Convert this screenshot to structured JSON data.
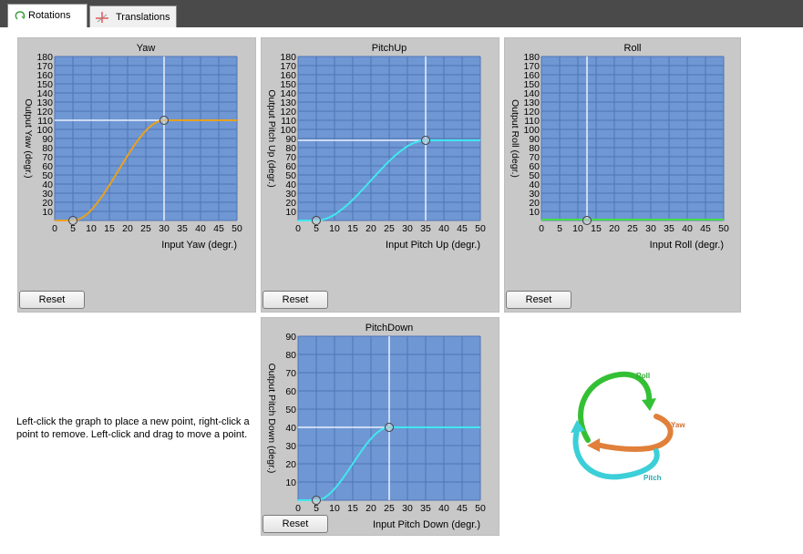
{
  "tabs": [
    {
      "label": "Rotations",
      "icon": "rotation-icon",
      "active": true
    },
    {
      "label": "Translations",
      "icon": "translation-axes-icon",
      "active": false
    }
  ],
  "colors": {
    "plot_bg": "#6f97d3",
    "grid": "#4f75b6",
    "panel_bg": "#c8c8c8",
    "yaw_curve": "#e8a11f",
    "pitch_curve": "#40e8ef",
    "roll_curve": "#43e043",
    "crosshair": "#eaf0ff"
  },
  "graphs": [
    {
      "id": "yaw",
      "title": "Yaw",
      "xlabel": "Input Yaw (degr.)",
      "ylabel": "Output Yaw (degr.)",
      "ymax": 180,
      "xmax": 50,
      "curve_color": "#e8a11f",
      "xticks": [
        "0",
        "5",
        "10",
        "15",
        "20",
        "25",
        "30",
        "35",
        "40",
        "45",
        "50"
      ],
      "yticks": [
        "10",
        "20",
        "30",
        "40",
        "50",
        "60",
        "70",
        "80",
        "90",
        "100",
        "110",
        "120",
        "130",
        "140",
        "150",
        "160",
        "170",
        "180"
      ],
      "points": [
        [
          5,
          0
        ],
        [
          30,
          110
        ]
      ],
      "crosshair": [
        30,
        110
      ],
      "reset_label": "Reset"
    },
    {
      "id": "pitchup",
      "title": "PitchUp",
      "xlabel": "Input Pitch Up (degr.)",
      "ylabel": "Output Pitch Up (degr.)",
      "ymax": 180,
      "xmax": 50,
      "curve_color": "#40e8ef",
      "xticks": [
        "0",
        "5",
        "10",
        "15",
        "20",
        "25",
        "30",
        "35",
        "40",
        "45",
        "50"
      ],
      "yticks": [
        "10",
        "20",
        "30",
        "40",
        "50",
        "60",
        "70",
        "80",
        "90",
        "100",
        "110",
        "120",
        "130",
        "140",
        "150",
        "160",
        "170",
        "180"
      ],
      "points": [
        [
          5,
          0
        ],
        [
          35,
          88
        ]
      ],
      "crosshair": [
        35,
        88
      ],
      "reset_label": "Reset"
    },
    {
      "id": "roll",
      "title": "Roll",
      "xlabel": "Input Roll (degr.)",
      "ylabel": "Output Roll (degr.)",
      "ymax": 180,
      "xmax": 50,
      "curve_color": "#43e043",
      "xticks": [
        "0",
        "5",
        "10",
        "15",
        "20",
        "25",
        "30",
        "35",
        "40",
        "45",
        "50"
      ],
      "yticks": [
        "10",
        "20",
        "30",
        "40",
        "50",
        "60",
        "70",
        "80",
        "90",
        "100",
        "110",
        "120",
        "130",
        "140",
        "150",
        "160",
        "170",
        "180"
      ],
      "points": [
        [
          12.5,
          0
        ]
      ],
      "crosshair": [
        12.5,
        0
      ],
      "reset_label": "Reset"
    },
    {
      "id": "pitchdown",
      "title": "PitchDown",
      "xlabel": "Input Pitch Down (degr.)",
      "ylabel": "Output Pitch Down (degr.)",
      "ymax": 90,
      "xmax": 50,
      "curve_color": "#40e8ef",
      "xticks": [
        "0",
        "5",
        "10",
        "15",
        "20",
        "25",
        "30",
        "35",
        "40",
        "45",
        "50"
      ],
      "yticks": [
        "10",
        "20",
        "30",
        "40",
        "50",
        "60",
        "70",
        "80",
        "90"
      ],
      "points": [
        [
          5,
          0
        ],
        [
          25,
          40
        ]
      ],
      "crosshair": [
        25,
        40
      ],
      "reset_label": "Reset"
    }
  ],
  "help_text": "Left-click the graph to place a new point, right-click a point to remove. Left-click and drag to move a point.",
  "diagram": {
    "roll_label": "Roll",
    "yaw_label": "Yaw",
    "pitch_label": "Pitch"
  }
}
